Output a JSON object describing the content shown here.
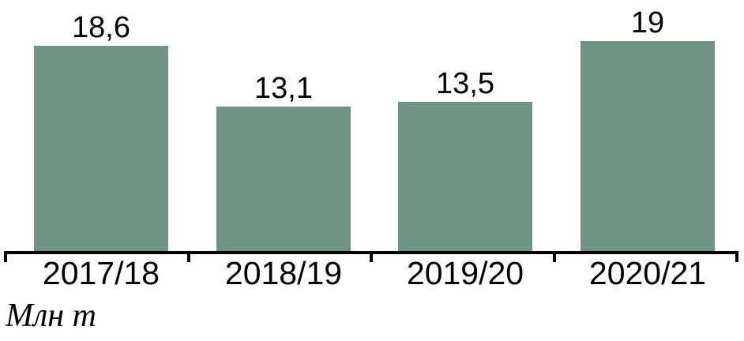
{
  "chart_data": {
    "type": "bar",
    "title": "",
    "categories": [
      "2017/18",
      "2018/19",
      "2019/20",
      "2020/21"
    ],
    "values": [
      18.6,
      13.1,
      13.5,
      19
    ],
    "value_labels": [
      "18,6",
      "13,1",
      "13,5",
      "19"
    ],
    "unit_label": "Млн т",
    "xlabel": "",
    "ylabel": "Млн т",
    "ylim": [
      0,
      19
    ],
    "grid": false,
    "legend": false,
    "colors": {
      "bar": "#6F9484",
      "axis": "#000000",
      "text": "#000000",
      "background": "#FFFFFF"
    }
  }
}
